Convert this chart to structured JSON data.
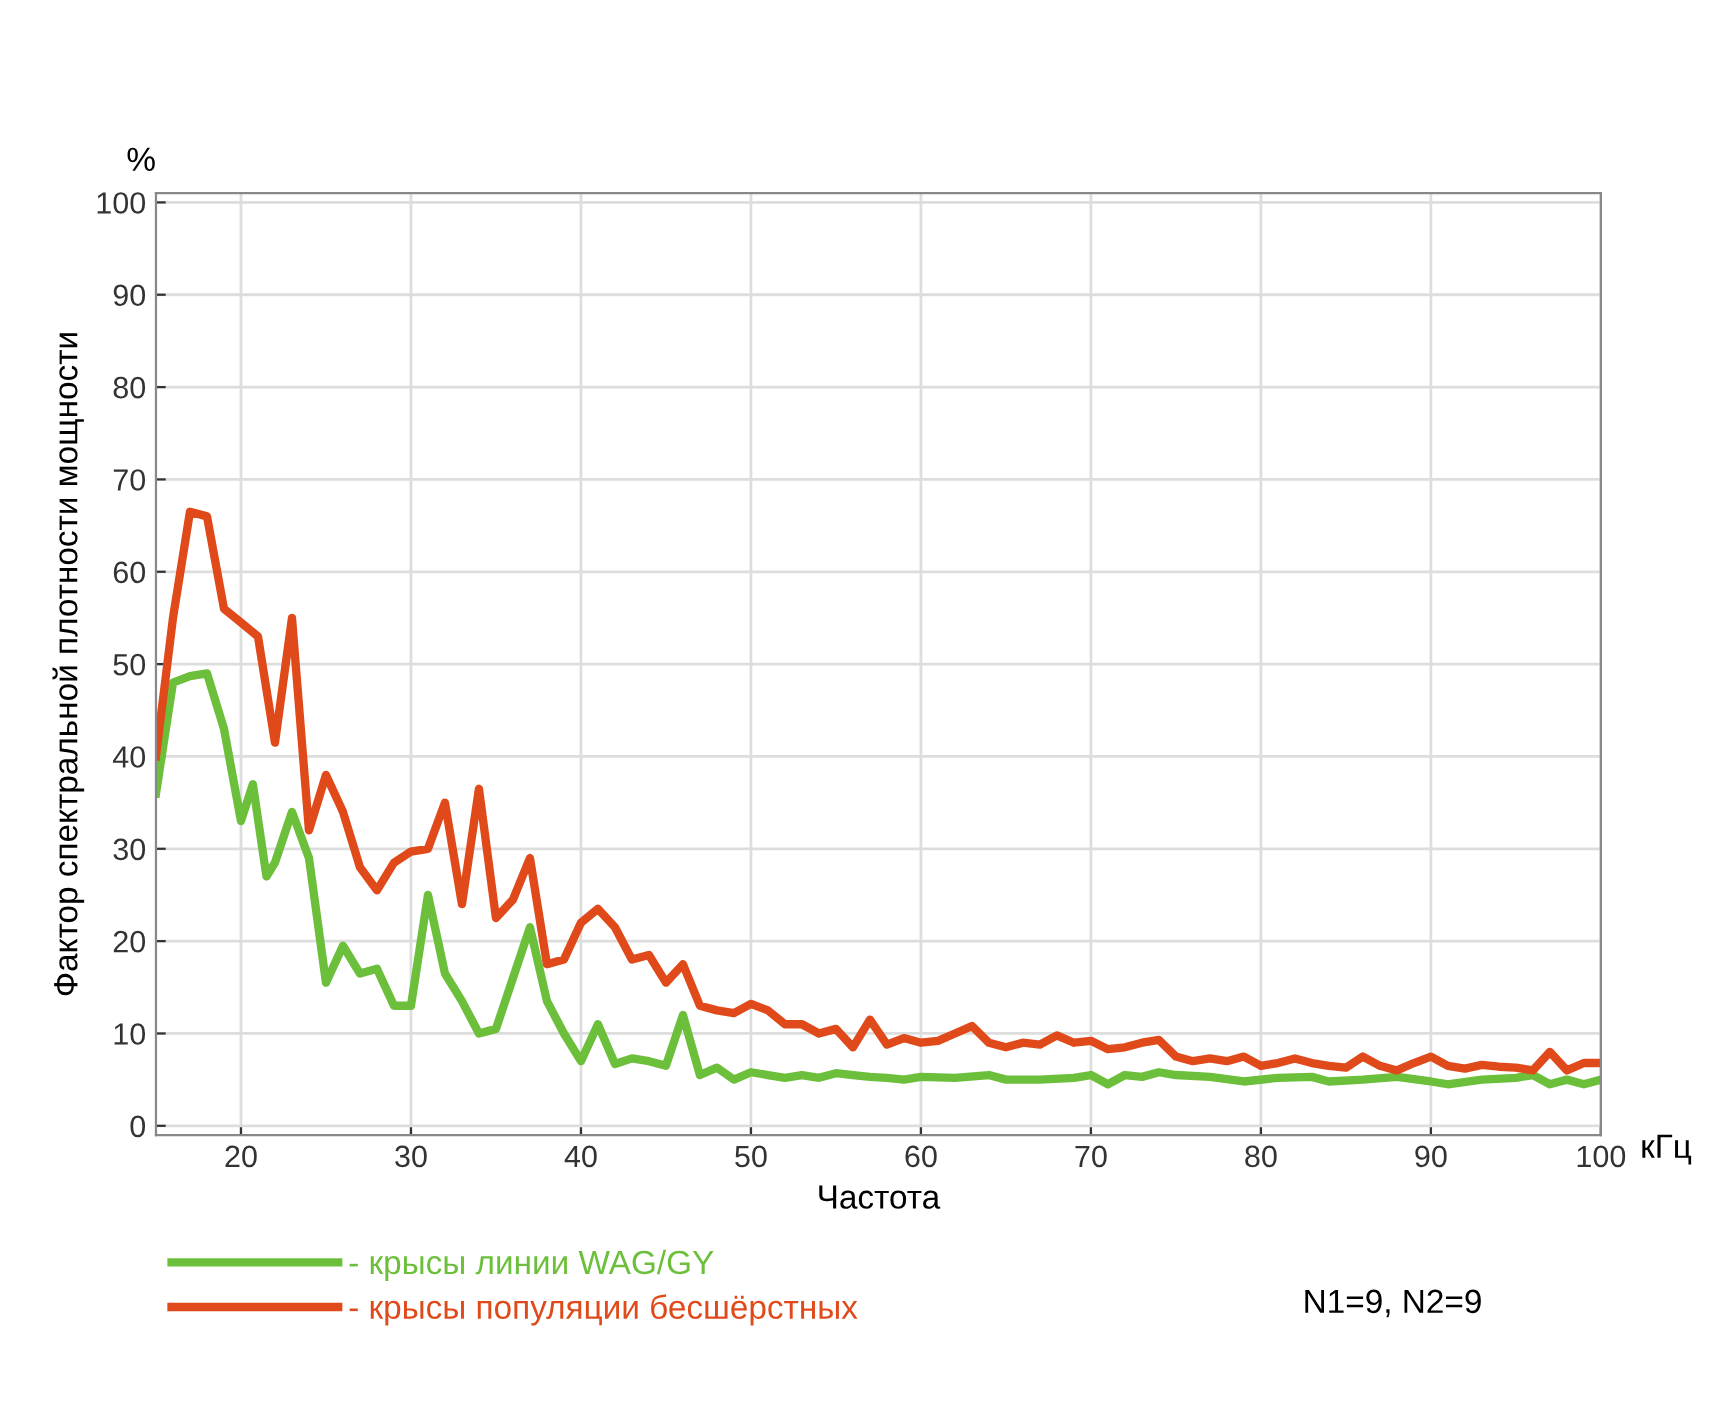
{
  "chart_data": {
    "type": "line",
    "xlabel": "Частота",
    "ylabel": "Фактор спектральной плотности мощности",
    "annotations": [
      "%",
      "кГц",
      "N1=9, N2=9"
    ],
    "xlim": [
      15,
      100
    ],
    "ylim": [
      -1,
      101
    ],
    "xticks": [
      20,
      30,
      40,
      50,
      60,
      70,
      80,
      90,
      100
    ],
    "yticks": [
      0,
      10,
      20,
      30,
      40,
      50,
      60,
      70,
      80,
      90,
      100
    ],
    "grid": true,
    "legend": "bottom",
    "marker": "none",
    "line_style": "solid",
    "series": [
      {
        "name": "- крысы линии WAG/GY",
        "color": "#6cbf3a",
        "x": [
          15,
          16,
          17,
          18,
          19,
          20,
          20.7,
          21.5,
          22,
          23,
          24,
          25,
          26,
          27,
          28,
          29,
          30,
          31,
          32,
          33,
          34,
          35,
          36,
          37,
          38,
          39,
          40,
          41,
          42,
          43,
          44,
          45,
          46,
          47,
          48,
          49,
          50,
          51,
          52,
          53,
          54,
          55,
          56,
          57,
          58,
          59,
          60,
          62,
          64,
          65,
          67,
          69,
          70,
          71,
          72,
          73,
          74,
          75,
          77,
          79,
          81,
          83,
          84,
          86,
          88,
          90,
          91,
          93,
          95,
          96,
          97,
          98,
          99,
          100
        ],
        "values": [
          36,
          48,
          48.7,
          49,
          43,
          33,
          37,
          27,
          28.5,
          34,
          29,
          15.5,
          19.5,
          16.5,
          17,
          13,
          13,
          25,
          16.5,
          13.5,
          10,
          10.5,
          16,
          21.5,
          13.5,
          10,
          7,
          11,
          6.7,
          7.3,
          7,
          6.5,
          12,
          5.5,
          6.3,
          5,
          5.8,
          5.5,
          5.2,
          5.5,
          5.2,
          5.7,
          5.5,
          5.3,
          5.2,
          5,
          5.3,
          5.2,
          5.5,
          5,
          5,
          5.2,
          5.5,
          4.5,
          5.5,
          5.3,
          5.8,
          5.5,
          5.3,
          4.8,
          5.2,
          5.3,
          4.8,
          5,
          5.3,
          4.8,
          4.5,
          5,
          5.2,
          5.5,
          4.5,
          5,
          4.5,
          5
        ]
      },
      {
        "name": "- крысы популяции бесшёрстных",
        "color": "#e04a1a",
        "x": [
          15,
          16,
          17,
          18,
          19,
          20,
          21,
          22,
          23,
          24,
          25,
          26,
          27,
          28,
          29,
          30,
          31,
          32,
          33,
          34,
          35,
          36,
          37,
          38,
          39,
          40,
          41,
          42,
          43,
          44,
          45,
          46,
          47,
          48,
          49,
          50,
          51,
          52,
          53,
          54,
          55,
          56,
          57,
          58,
          59,
          60,
          61,
          62,
          63,
          64,
          65,
          66,
          67,
          68,
          69,
          70,
          71,
          72,
          73,
          74,
          75,
          76,
          77,
          78,
          79,
          80,
          81,
          82,
          83,
          84,
          85,
          86,
          87,
          88,
          89,
          90,
          91,
          92,
          93,
          94,
          95,
          96,
          97,
          98,
          99,
          100
        ],
        "values": [
          40,
          55,
          66.5,
          66,
          56,
          54.5,
          53,
          41.5,
          55,
          32,
          38,
          34,
          28,
          25.5,
          28.5,
          29.7,
          30,
          35,
          24,
          36.5,
          22.5,
          24.5,
          29,
          17.5,
          18,
          22,
          23.5,
          21.5,
          18,
          18.5,
          15.5,
          17.5,
          13,
          12.5,
          12.2,
          13.2,
          12.5,
          11,
          11,
          10,
          10.5,
          8.5,
          11.5,
          8.8,
          9.5,
          9,
          9.2,
          10,
          10.8,
          9,
          8.5,
          9,
          8.8,
          9.8,
          9,
          9.2,
          8.3,
          8.5,
          9,
          9.3,
          7.5,
          7,
          7.3,
          7,
          7.5,
          6.5,
          6.8,
          7.3,
          6.8,
          6.5,
          6.3,
          7.5,
          6.5,
          6,
          6.8,
          7.5,
          6.5,
          6.2,
          6.6,
          6.4,
          6.3,
          6,
          8,
          6,
          6.8,
          6.8
        ]
      }
    ]
  }
}
